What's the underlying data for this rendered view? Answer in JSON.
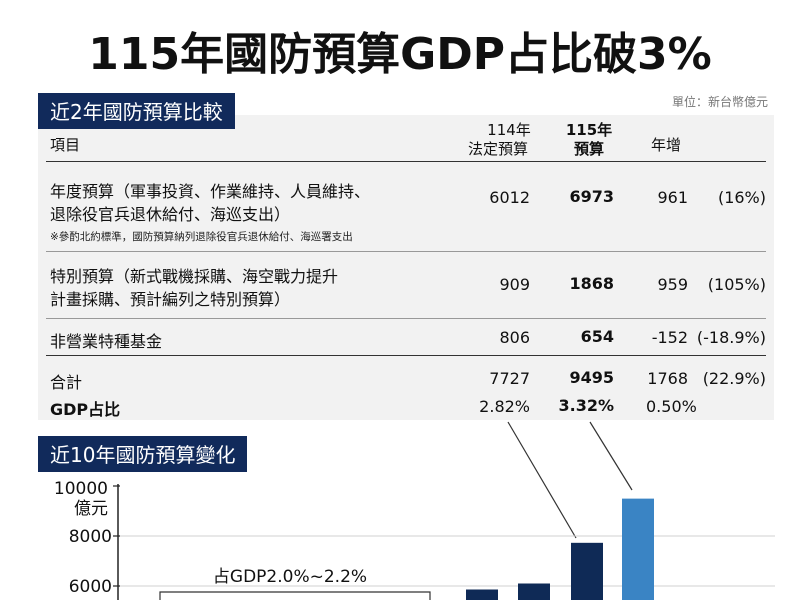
{
  "title": "115年國防預算GDP占比破3%",
  "unit": "單位：新台幣億元",
  "table": {
    "section_title": "近2年國防預算比較",
    "headers": {
      "item": "項目",
      "col114_line1": "114年",
      "col114_line2": "法定預算",
      "col115_line1": "115年",
      "col115_line2": "預算",
      "growth": "年增"
    },
    "rows": [
      {
        "label_line1": "年度預算（軍事投資、作業維持、人員維持、",
        "label_line2": "退除役官兵退休給付、海巡支出）",
        "note": "※參酌北約標準，國防預算納列退除役官兵退休給付、海巡署支出",
        "v114": "6012",
        "v115": "6973",
        "inc": "961",
        "pct": "(16%)"
      },
      {
        "label_line1": "特別預算（新式戰機採購、海空戰力提升",
        "label_line2": "計畫採購、預計編列之特別預算）",
        "v114": "909",
        "v115": "1868",
        "inc": "959",
        "pct": "(105%)"
      },
      {
        "label_line1": "非營業特種基金",
        "v114": "806",
        "v115": "654",
        "inc": "-152",
        "pct": "(-18.9%)"
      }
    ],
    "total": {
      "label": "合計",
      "v114": "7727",
      "v115": "9495",
      "inc": "1768",
      "pct": "(22.9%)"
    },
    "gdp": {
      "label": "GDP占比",
      "v114": "2.82%",
      "v115": "3.32%",
      "inc": "0.50%"
    }
  },
  "chart_section_title": "近10年國防預算變化",
  "chart_data": {
    "type": "bar",
    "ylabel_line1": "10000",
    "ylabel_line2": "億元",
    "yticks": [
      8000,
      6000
    ],
    "ylim": [
      5500,
      10000
    ],
    "annotation": "占GDP2.0%~2.2%",
    "visible_bars": [
      {
        "value": 5860,
        "color": "#0f2a56"
      },
      {
        "value": 6100,
        "color": "#0f2a56"
      },
      {
        "value": 7727,
        "color": "#0f2a56"
      },
      {
        "value": 9495,
        "color": "#3a84c4"
      }
    ]
  }
}
